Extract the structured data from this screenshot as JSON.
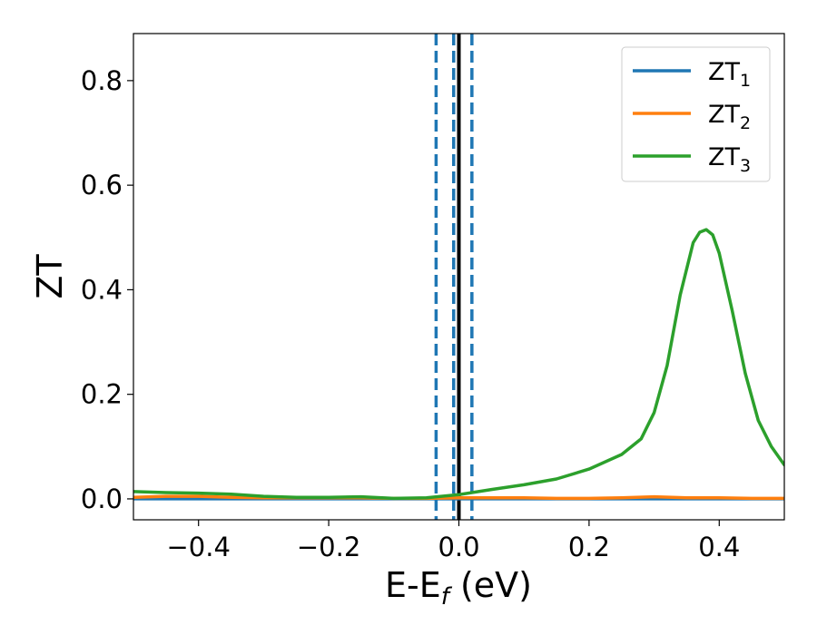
{
  "chart_data": {
    "type": "line",
    "xlabel": {
      "main": "E-E",
      "sub": "f",
      "unit": " (eV)"
    },
    "ylabel": "ZT",
    "xlim": [
      -0.5,
      0.5
    ],
    "ylim": [
      -0.04,
      0.89
    ],
    "xticks": [
      -0.4,
      -0.2,
      0.0,
      0.2,
      0.4
    ],
    "xtick_labels": [
      "−0.4",
      "−0.2",
      "0.0",
      "0.2",
      "0.4"
    ],
    "yticks": [
      0.0,
      0.2,
      0.4,
      0.6,
      0.8
    ],
    "ytick_labels": [
      "0.0",
      "0.2",
      "0.4",
      "0.6",
      "0.8"
    ],
    "legend_position": "top-right",
    "vertical_lines": [
      {
        "x": -0.035,
        "style": "dashed",
        "color": "#1f77b4"
      },
      {
        "x": -0.008,
        "style": "dashed",
        "color": "#1f77b4"
      },
      {
        "x": 0.0,
        "style": "solid",
        "color": "#000000"
      },
      {
        "x": 0.02,
        "style": "dashed",
        "color": "#1f77b4"
      }
    ],
    "series": [
      {
        "name": "ZT",
        "sub": "1",
        "color": "#1f77b4",
        "x": [
          -0.5,
          0.0,
          0.5
        ],
        "y": [
          0.0,
          0.0,
          0.0
        ]
      },
      {
        "name": "ZT",
        "sub": "2",
        "color": "#ff7f0e",
        "x": [
          -0.5,
          -0.45,
          -0.4,
          -0.35,
          -0.3,
          -0.25,
          -0.2,
          -0.15,
          -0.1,
          -0.05,
          0.0,
          0.05,
          0.1,
          0.15,
          0.2,
          0.25,
          0.3,
          0.35,
          0.4,
          0.45,
          0.5
        ],
        "y": [
          0.003,
          0.005,
          0.005,
          0.003,
          0.002,
          0.002,
          0.002,
          0.002,
          0.001,
          0.001,
          0.002,
          0.002,
          0.002,
          0.001,
          0.001,
          0.002,
          0.004,
          0.002,
          0.002,
          0.001,
          0.001
        ]
      },
      {
        "name": "ZT",
        "sub": "3",
        "color": "#2ca02c",
        "x": [
          -0.5,
          -0.45,
          -0.4,
          -0.35,
          -0.3,
          -0.25,
          -0.2,
          -0.15,
          -0.1,
          -0.05,
          0.0,
          0.05,
          0.1,
          0.15,
          0.2,
          0.25,
          0.28,
          0.3,
          0.32,
          0.34,
          0.36,
          0.37,
          0.38,
          0.39,
          0.4,
          0.42,
          0.44,
          0.46,
          0.48,
          0.5
        ],
        "y": [
          0.014,
          0.012,
          0.011,
          0.009,
          0.005,
          0.003,
          0.003,
          0.004,
          0.001,
          0.002,
          0.008,
          0.018,
          0.027,
          0.038,
          0.057,
          0.085,
          0.115,
          0.165,
          0.255,
          0.39,
          0.49,
          0.51,
          0.515,
          0.505,
          0.47,
          0.36,
          0.24,
          0.15,
          0.1,
          0.065
        ]
      }
    ]
  }
}
